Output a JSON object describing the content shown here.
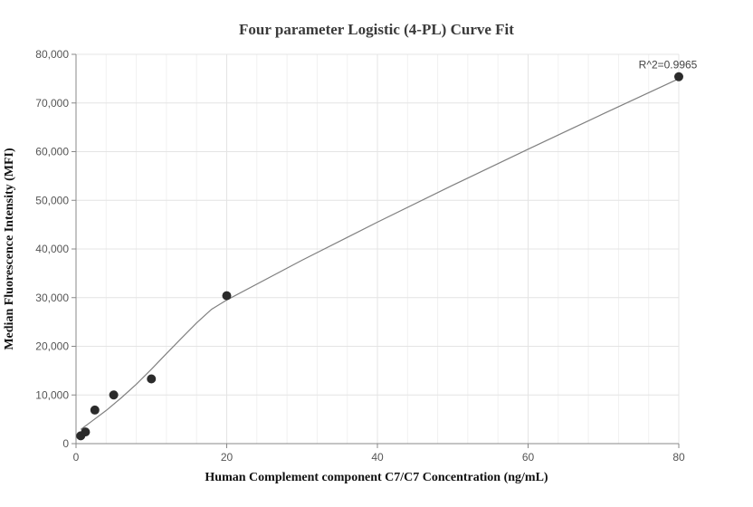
{
  "chart_data": {
    "type": "scatter",
    "title": "Four parameter Logistic (4-PL) Curve Fit",
    "xlabel": "Human Complement component C7/C7 Concentration (ng/mL)",
    "ylabel": "Median Fluorescence Intensity (MFI)",
    "xlim": [
      0,
      80
    ],
    "ylim": [
      0,
      80000
    ],
    "x_ticks": [
      0,
      20,
      40,
      60,
      80
    ],
    "y_ticks": [
      0,
      10000,
      20000,
      30000,
      40000,
      50000,
      60000,
      70000,
      80000
    ],
    "x_tick_labels": [
      "0",
      "20",
      "40",
      "60",
      "80"
    ],
    "y_tick_labels": [
      "0",
      "10,000",
      "20,000",
      "30,000",
      "40,000",
      "50,000",
      "60,000",
      "70,000",
      "80,000"
    ],
    "grid": true,
    "series": [
      {
        "type": "scatter",
        "color": "#2b2b2b",
        "x": [
          0.625,
          1.25,
          2.5,
          5,
          10,
          20,
          80
        ],
        "y": [
          1600,
          2400,
          6900,
          10000,
          13300,
          30400,
          75400
        ]
      },
      {
        "type": "line",
        "color": "#808080",
        "x": [
          0.625,
          2,
          4,
          6,
          8,
          10,
          12,
          14,
          16,
          18,
          20,
          30,
          40,
          50,
          60,
          70,
          80
        ],
        "y": [
          2900,
          4500,
          6800,
          9400,
          12200,
          15300,
          18500,
          21700,
          24800,
          27600,
          29500,
          37700,
          45500,
          53100,
          60500,
          67800,
          75000
        ]
      }
    ],
    "annotations": [
      {
        "text": "R^2=0.9965",
        "x": 80,
        "y": 75400
      }
    ]
  }
}
